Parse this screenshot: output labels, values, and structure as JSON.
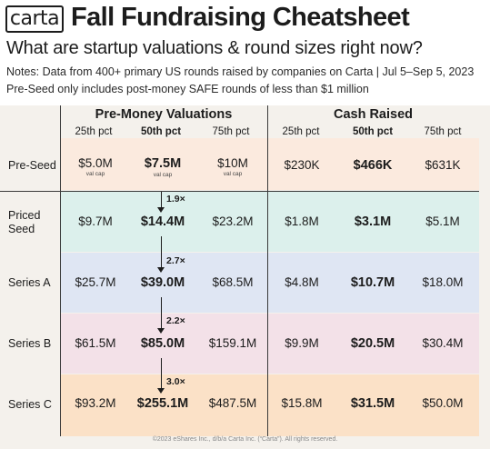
{
  "logo": "carta",
  "title": "Fall Fundraising Cheatsheet",
  "subtitle": "What are startup valuations & round sizes right now?",
  "notes": [
    "Notes: Data from 400+ primary US rounds raised by companies on Carta | Jul 5–Sep 5, 2023",
    "Pre-Seed only includes post-money SAFE rounds of less than $1 million"
  ],
  "footer": "©2023 eShares Inc., d/b/a Carta Inc. (“Carta”). All rights reserved.",
  "chart_data": {
    "type": "table",
    "groups": [
      "Pre-Money Valuations",
      "Cash Raised"
    ],
    "columns": [
      "25th pct",
      "50th pct",
      "75th pct",
      "25th pct",
      "50th pct",
      "75th pct"
    ],
    "rows": [
      {
        "label": "Pre-Seed",
        "values": [
          "$5.0M",
          "$7.5M",
          "$10M",
          "$230K",
          "$466K",
          "$631K"
        ],
        "valuation_note": "val cap",
        "color": "#fbeade"
      },
      {
        "label": "Priced Seed",
        "values": [
          "$9.7M",
          "$14.4M",
          "$23.2M",
          "$1.8M",
          "$3.1M",
          "$5.1M"
        ],
        "color": "#dcf0ec"
      },
      {
        "label": "Series A",
        "values": [
          "$25.7M",
          "$39.0M",
          "$68.5M",
          "$4.8M",
          "$10.7M",
          "$18.0M"
        ],
        "color": "#dfe6f3"
      },
      {
        "label": "Series B",
        "values": [
          "$61.5M",
          "$85.0M",
          "$159.1M",
          "$9.9M",
          "$20.5M",
          "$30.4M"
        ],
        "color": "#f3e1e8"
      },
      {
        "label": "Series C",
        "values": [
          "$93.2M",
          "$255.1M",
          "$487.5M",
          "$15.8M",
          "$31.5M",
          "$50.0M"
        ],
        "color": "#fbe1c7"
      }
    ],
    "median_valuation_multipliers": [
      "1.9×",
      "2.7×",
      "2.2×",
      "3.0×"
    ]
  }
}
